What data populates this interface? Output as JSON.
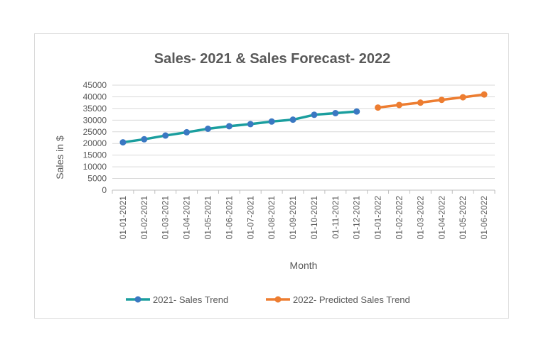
{
  "chart_data": {
    "type": "line",
    "title": "Sales- 2021 & Sales Forecast- 2022",
    "xlabel": "Month",
    "ylabel": "Sales in $",
    "ylim": [
      0,
      45000
    ],
    "y_ticks": [
      0,
      5000,
      10000,
      15000,
      20000,
      25000,
      30000,
      35000,
      40000,
      45000
    ],
    "grid": true,
    "legend_position": "bottom",
    "categories": [
      "01-01-2021",
      "01-02-2021",
      "01-03-2021",
      "01-04-2021",
      "01-05-2021",
      "01-06-2021",
      "01-07-2021",
      "01-08-2021",
      "01-09-2021",
      "01-10-2021",
      "01-11-2021",
      "01-12-2021",
      "01-01-2022",
      "01-02-2022",
      "01-03-2022",
      "01-04-2022",
      "01-05-2022",
      "01-06-2022"
    ],
    "series": [
      {
        "name": "2021- Sales Trend",
        "color": "#1a9e9e",
        "values": [
          20500,
          21800,
          23400,
          24800,
          26300,
          27400,
          28300,
          29400,
          30200,
          32300,
          33000,
          33700,
          null,
          null,
          null,
          null,
          null,
          null
        ]
      },
      {
        "name": "2022- Predicted Sales Trend",
        "color": "#ed7d31",
        "values": [
          null,
          null,
          null,
          null,
          null,
          null,
          null,
          null,
          null,
          null,
          null,
          null,
          35400,
          36500,
          37500,
          38700,
          39800,
          41000
        ]
      }
    ]
  }
}
